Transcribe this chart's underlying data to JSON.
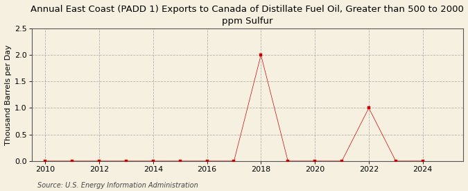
{
  "title": "Annual East Coast (PADD 1) Exports to Canada of Distillate Fuel Oil, Greater than 500 to 2000\nppm Sulfur",
  "ylabel": "Thousand Barrels per Day",
  "source": "Source: U.S. Energy Information Administration",
  "background_color": "#f5f0e0",
  "plot_bg_color": "#f5f0e0",
  "xlim": [
    2009.5,
    2025.5
  ],
  "ylim": [
    0.0,
    2.5
  ],
  "yticks": [
    0.0,
    0.5,
    1.0,
    1.5,
    2.0,
    2.5
  ],
  "xticks": [
    2010,
    2012,
    2014,
    2016,
    2018,
    2020,
    2022,
    2024
  ],
  "years": [
    2010,
    2011,
    2012,
    2013,
    2014,
    2015,
    2016,
    2017,
    2018,
    2019,
    2020,
    2021,
    2022,
    2023,
    2024
  ],
  "values": [
    0,
    0,
    0,
    0,
    0,
    0,
    0,
    0,
    2.0,
    0,
    0,
    0,
    1.0,
    0,
    0
  ],
  "line_color": "#cc0000",
  "marker_color": "#cc0000",
  "marker": "s",
  "marker_size": 2.5,
  "grid_color": "#aaaaaa",
  "grid_style": "--",
  "title_fontsize": 9.5,
  "axis_label_fontsize": 8,
  "tick_fontsize": 8,
  "source_fontsize": 7
}
